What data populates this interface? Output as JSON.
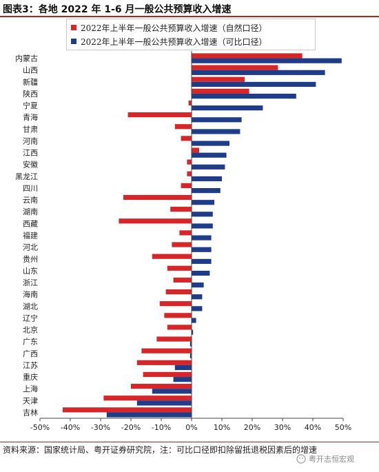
{
  "title": "图表3：各地 2022 年 1-6 月一般公共预算收入增速",
  "source": "资料来源：国家统计局、粤开证券研究院，注：可比口径即扣除留抵退税因素后的增速",
  "watermark": "粤开志恒宏观",
  "colors": {
    "series1": "#d7262a",
    "series2": "#1f3c88",
    "rule": "#b22222"
  },
  "chart_data": {
    "type": "bar",
    "orientation": "horizontal",
    "categories": [
      "内蒙古",
      "山西",
      "新疆",
      "陕西",
      "宁夏",
      "青海",
      "甘肃",
      "河南",
      "江西",
      "安徽",
      "黑龙江",
      "四川",
      "云南",
      "湖南",
      "西藏",
      "福建",
      "河北",
      "贵州",
      "山东",
      "浙江",
      "海南",
      "湖北",
      "辽宁",
      "北京",
      "广东",
      "广西",
      "江苏",
      "重庆",
      "上海",
      "天津",
      "吉林"
    ],
    "series": [
      {
        "name": "2022年上半年一般公共预算收入增速（自然口径）",
        "values": [
          36.5,
          28.5,
          17.5,
          19.0,
          -1.0,
          -21.0,
          -5.5,
          -3.5,
          2.5,
          -1.5,
          -1.5,
          -3.5,
          -22.5,
          -7.0,
          -24.0,
          -4.0,
          -6.5,
          -13.0,
          -8.0,
          -6.0,
          -8.5,
          -10.5,
          -9.0,
          -8.0,
          -11.5,
          -16.5,
          -18.0,
          -16.0,
          -20.0,
          -29.0,
          -42.5
        ]
      },
      {
        "name": "2022年上半年一般公共预算收入增速（可比口径）",
        "values": [
          49.5,
          44.0,
          41.0,
          34.5,
          23.5,
          16.5,
          16.0,
          12.5,
          11.5,
          11.0,
          10.0,
          9.5,
          7.5,
          7.0,
          7.0,
          6.5,
          6.5,
          6.5,
          6.0,
          4.0,
          3.5,
          3.5,
          1.5,
          0.5,
          -0.5,
          -0.5,
          -5.5,
          -6.0,
          -13.0,
          -18.0,
          -28.0
        ]
      }
    ],
    "xlim": [
      -50,
      50
    ],
    "xticks": [
      -50,
      -40,
      -30,
      -20,
      -10,
      0,
      10,
      20,
      30,
      40,
      50
    ],
    "xtick_labels": [
      "-50%",
      "-40%",
      "-30%",
      "-20%",
      "-10%",
      "0%",
      "10%",
      "20%",
      "30%",
      "40%",
      "50%"
    ],
    "legend_position": "top",
    "grid": false
  }
}
